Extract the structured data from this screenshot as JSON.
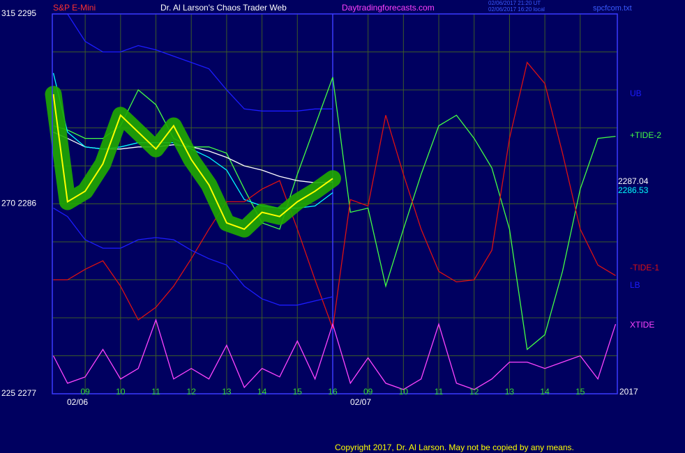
{
  "chart_data": {
    "type": "line",
    "title": "Dr. Al Larson's Chaos Trader Web",
    "subtitle": "S&P E-Mini",
    "site": "Daytradingforecasts.com",
    "timestamps": [
      "02/06/2017 21:20 UT",
      "02/06/2017 16:20 local"
    ],
    "file": "spcfcom.txt",
    "year": "2017",
    "dates": [
      "02/06",
      "02/07"
    ],
    "copyright": "Copyright 2017, Dr. Al Larson. May not be copied by any means.",
    "annotations": [
      {
        "text": "2287.04",
        "color": "#ffffff"
      },
      {
        "text": "2286.53",
        "color": "#00ffff"
      }
    ],
    "x": [
      -0.9,
      -0.5,
      0,
      0.5,
      1,
      1.5,
      2,
      2.5,
      3,
      3.5,
      4,
      4.5,
      5,
      5.5,
      6,
      6.5,
      7,
      7.5,
      8,
      8.5,
      9,
      9.5,
      10,
      10.5,
      11,
      11.5,
      12,
      12.5,
      13,
      13.5,
      14,
      14.5,
      15
    ],
    "xlim": [
      -0.93,
      15.05
    ],
    "xticks": [
      {
        "value": 0,
        "label": "09"
      },
      {
        "value": 1,
        "label": "10"
      },
      {
        "value": 2,
        "label": "11"
      },
      {
        "value": 3,
        "label": "12"
      },
      {
        "value": 4,
        "label": "13"
      },
      {
        "value": 5,
        "label": "14"
      },
      {
        "value": 6,
        "label": "15"
      },
      {
        "value": 7,
        "label": "16"
      },
      {
        "value": 8,
        "label": "09"
      },
      {
        "value": 9,
        "label": "10"
      },
      {
        "value": 10,
        "label": "11"
      },
      {
        "value": 11,
        "label": "12"
      },
      {
        "value": 12,
        "label": "13"
      },
      {
        "value": 13,
        "label": "14"
      },
      {
        "value": 14,
        "label": "15"
      }
    ],
    "ylim": [
      2277,
      2295
    ],
    "yticks": [
      {
        "value": 2277,
        "label": "225 2277"
      },
      {
        "value": 2286,
        "label": "270 2286"
      },
      {
        "value": 2295,
        "label": "315 2295"
      }
    ],
    "ygrid": [
      2278.8,
      2280.6,
      2282.4,
      2284.2,
      2286,
      2287.8,
      2289.6,
      2291.4,
      2293.2
    ],
    "grid": true,
    "divider": 7,
    "series": [
      {
        "color": "#1c1cff",
        "name": "UB",
        "values": [
          2295.0,
          2295.0,
          2293.7,
          2293.2,
          2293.2,
          2293.5,
          2293.3,
          2293.0,
          2292.7,
          2292.4,
          2291.4,
          2290.5,
          2290.4,
          2290.4,
          2290.4,
          2290.5,
          2290.5,
          null,
          null,
          null,
          null,
          null,
          null,
          null,
          null,
          null,
          null,
          null,
          null,
          null,
          null,
          null,
          null
        ]
      },
      {
        "color": "#44ff44",
        "name": "+TIDE-2",
        "values": [
          2289.7,
          2289.5,
          2289.1,
          2289.1,
          2289.7,
          2291.4,
          2290.7,
          2289.1,
          2288.7,
          2288.7,
          2288.4,
          2286.7,
          2285.1,
          2284.8,
          2287.4,
          2289.7,
          2292.0,
          2285.6,
          2285.8,
          2282.1,
          2284.8,
          2287.4,
          2289.7,
          2290.2,
          2289.1,
          2287.7,
          2284.8,
          2279.1,
          2279.8,
          2282.8,
          2286.7,
          2289.1,
          2289.2
        ]
      },
      {
        "color": "#ffffff",
        "values": [
          2289.4,
          2289.1,
          2288.7,
          2288.6,
          2288.6,
          2288.7,
          2288.7,
          2288.8,
          2288.7,
          2288.5,
          2288.2,
          2287.8,
          2287.6,
          2287.3,
          2287.1,
          2287.0,
          2287.04,
          null,
          null,
          null,
          null,
          null,
          null,
          null,
          null,
          null,
          null,
          null,
          null,
          null,
          null,
          null,
          null
        ]
      },
      {
        "color": "#00ffff",
        "values": [
          2292.2,
          2289.4,
          2288.7,
          2288.6,
          2288.7,
          2288.9,
          2288.9,
          2288.9,
          2288.6,
          2288.2,
          2287.6,
          2286.2,
          2285.9,
          2285.8,
          2285.8,
          2285.9,
          2286.53,
          null,
          null,
          null,
          null,
          null,
          null,
          null,
          null,
          null,
          null,
          null,
          null,
          null,
          null,
          null,
          null
        ]
      },
      {
        "color": "#dd1111",
        "name": "-TIDE-1",
        "values": [
          2282.4,
          2282.4,
          2282.9,
          2283.3,
          2282.1,
          2280.5,
          2281.1,
          2282.1,
          2283.4,
          2284.8,
          2286.1,
          2286.1,
          2286.7,
          2287.1,
          2284.8,
          2282.4,
          2280.1,
          2286.2,
          2285.9,
          2290.2,
          2287.4,
          2284.8,
          2282.8,
          2282.3,
          2282.4,
          2283.8,
          2289.1,
          2292.7,
          2291.7,
          2288.4,
          2284.8,
          2283.1,
          2282.6
        ]
      },
      {
        "color": "#1c1cff",
        "name": "LB",
        "values": [
          2285.8,
          2285.4,
          2284.3,
          2283.9,
          2283.9,
          2284.3,
          2284.4,
          2284.3,
          2283.8,
          2283.4,
          2283.1,
          2282.1,
          2281.5,
          2281.2,
          2281.2,
          2281.4,
          2281.6,
          null,
          null,
          null,
          null,
          null,
          null,
          null,
          null,
          null,
          null,
          null,
          null,
          null,
          null,
          null,
          null
        ]
      },
      {
        "color": "#ff44ff",
        "name": "XTIDE",
        "values": [
          2278.8,
          2277.5,
          2277.8,
          2279.1,
          2277.7,
          2278.2,
          2280.5,
          2277.7,
          2278.2,
          2277.7,
          2279.3,
          2277.3,
          2278.2,
          2277.8,
          2279.5,
          2277.7,
          2280.3,
          2277.5,
          2278.7,
          2277.5,
          2277.2,
          2277.7,
          2280.3,
          2277.5,
          2277.2,
          2277.7,
          2278.5,
          2278.5,
          2278.2,
          2278.5,
          2278.8,
          2277.7,
          2280.3
        ]
      },
      {
        "color": "#ffff00",
        "glow_color": "#1faa00",
        "values": [
          2291.2,
          2286.1,
          2286.6,
          2287.9,
          2290.2,
          2289.4,
          2288.6,
          2289.7,
          2288.1,
          2286.9,
          2285.1,
          2284.8,
          2285.6,
          2285.4,
          2286.1,
          2286.6,
          2287.2,
          null,
          null,
          null,
          null,
          null,
          null,
          null,
          null,
          null,
          null,
          null,
          null,
          null,
          null,
          null,
          null
        ]
      }
    ]
  }
}
